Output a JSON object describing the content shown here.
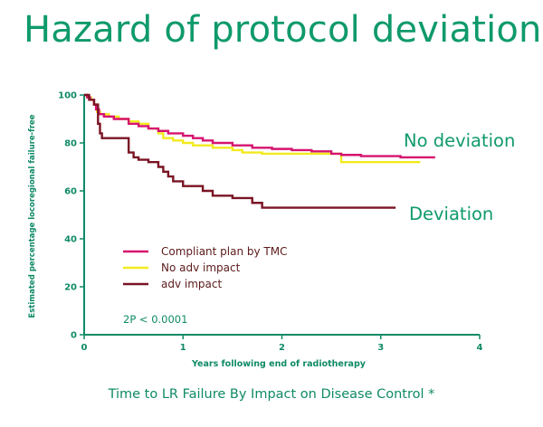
{
  "slide": {
    "title": "Hazard of protocol deviation",
    "caption": "Time to LR Failure By Impact on Disease Control *"
  },
  "chart_data": {
    "type": "line",
    "title": "Hazard of protocol deviation",
    "xlabel": "Years following end of radiotherapy",
    "ylabel": "Estimated percentage locoregional failure-free",
    "xlim": [
      0,
      4
    ],
    "ylim": [
      0,
      100
    ],
    "x_ticks": [
      0,
      1,
      2,
      3,
      4
    ],
    "y_ticks": [
      0,
      20,
      40,
      60,
      80,
      100
    ],
    "grid": false,
    "legend_position": "lower-left",
    "p_value_text": "2P < 0.0001",
    "annotations": [
      "No deviation",
      "Deviation"
    ],
    "colors": {
      "axis": "#0f8a66",
      "text": "#0f9a6c"
    },
    "series": [
      {
        "name": "Compliant plan by TMC",
        "color": "#d6136f",
        "x": [
          0,
          0.03,
          0.06,
          0.1,
          0.12,
          0.15,
          0.2,
          0.3,
          0.45,
          0.55,
          0.65,
          0.75,
          0.85,
          1.0,
          1.1,
          1.2,
          1.3,
          1.5,
          1.7,
          1.9,
          2.1,
          2.3,
          2.5,
          2.6,
          2.8,
          3.0,
          3.2,
          3.4,
          3.55
        ],
        "y": [
          100,
          99,
          98,
          96,
          94,
          92,
          91,
          90,
          88,
          87,
          86,
          85,
          84,
          83,
          82,
          81,
          80,
          79,
          78,
          77.5,
          77,
          76.5,
          75.5,
          75,
          74.5,
          74.5,
          74,
          74,
          74
        ]
      },
      {
        "name": "No adv impact",
        "color": "#f2ea1e",
        "x": [
          0,
          0.03,
          0.07,
          0.1,
          0.13,
          0.16,
          0.25,
          0.35,
          0.45,
          0.55,
          0.65,
          0.75,
          0.8,
          0.9,
          1.0,
          1.1,
          1.2,
          1.3,
          1.5,
          1.6,
          1.8,
          2.0,
          2.2,
          2.4,
          2.55,
          2.6,
          2.8,
          3.0,
          3.2,
          3.4
        ],
        "y": [
          100,
          99,
          98,
          96,
          93,
          92,
          91,
          90,
          89,
          88,
          86,
          84,
          82,
          81,
          80,
          79,
          79,
          78,
          77,
          76,
          75.5,
          75.5,
          75.5,
          75.5,
          75.5,
          72,
          72,
          72,
          72,
          72
        ]
      },
      {
        "name": "adv impact",
        "color": "#7a1424",
        "x": [
          0,
          0.05,
          0.1,
          0.14,
          0.16,
          0.18,
          0.25,
          0.4,
          0.45,
          0.5,
          0.55,
          0.65,
          0.75,
          0.8,
          0.85,
          0.9,
          1.0,
          1.1,
          1.2,
          1.3,
          1.5,
          1.7,
          1.8,
          2.0,
          2.4,
          2.8,
          3.15
        ],
        "y": [
          100,
          98,
          96,
          88,
          84,
          82,
          82,
          82,
          76,
          74,
          73,
          72,
          70,
          68,
          66,
          64,
          62,
          62,
          60,
          58,
          57,
          55,
          53,
          53,
          53,
          53,
          53
        ]
      }
    ]
  }
}
